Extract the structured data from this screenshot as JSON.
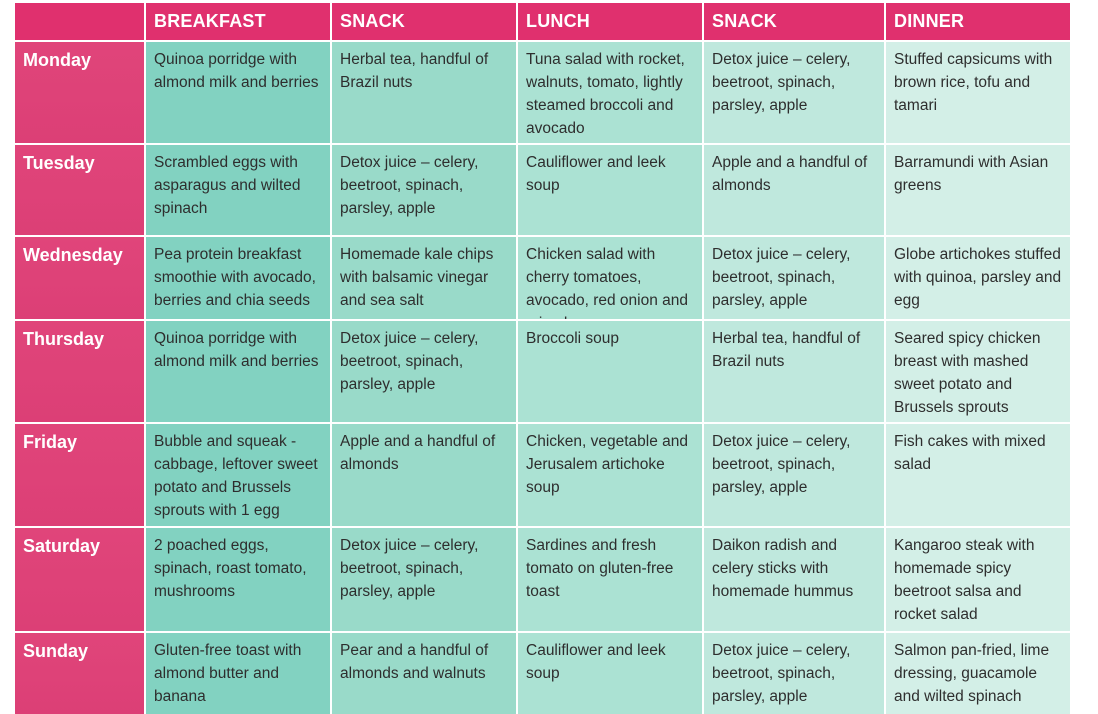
{
  "columns": [
    "BREAKFAST",
    "SNACK",
    "LUNCH",
    "SNACK",
    "DINNER"
  ],
  "rows": [
    {
      "day": "Monday",
      "meals": [
        "Quinoa porridge with almond milk and berries",
        "Herbal tea, handful of Brazil nuts",
        "Tuna salad with rocket, walnuts, tomato, lightly steamed broccoli and avocado",
        "Detox juice – celery, beetroot, spinach, parsley, apple",
        "Stuffed capsicums with brown rice, tofu and tamari"
      ]
    },
    {
      "day": "Tuesday",
      "meals": [
        "Scrambled eggs with asparagus and wilted spinach",
        "Detox juice – celery, beetroot, spinach, parsley, apple",
        "Cauliflower and leek soup",
        "Apple and a handful of almonds",
        "Barramundi with Asian greens"
      ]
    },
    {
      "day": "Wednesday",
      "meals": [
        "Pea protein breakfast smoothie with avocado, berries and chia seeds",
        "Homemade kale chips with balsamic vinegar and sea salt",
        "Chicken salad with cherry tomatoes, avocado, red onion and mixed greens",
        "Detox juice – celery, beetroot, spinach, parsley, apple",
        "Globe artichokes stuffed with quinoa, parsley and egg"
      ]
    },
    {
      "day": "Thursday",
      "meals": [
        "Quinoa porridge with almond milk and berries",
        "Detox juice – celery, beetroot, spinach, parsley, apple",
        "Broccoli soup",
        "Herbal tea, handful of Brazil nuts",
        "Seared spicy chicken breast with mashed sweet potato and Brussels sprouts"
      ]
    },
    {
      "day": "Friday",
      "meals": [
        "Bubble and squeak - cabbage, leftover sweet potato and Brussels sprouts with 1 egg",
        "Apple and a handful of almonds",
        "Chicken, vegetable and Jerusalem artichoke soup",
        "Detox juice – celery, beetroot, spinach, parsley, apple",
        "Fish cakes with mixed salad"
      ]
    },
    {
      "day": "Saturday",
      "meals": [
        "2 poached eggs, spinach, roast tomato, mushrooms",
        "Detox juice – celery, beetroot, spinach, parsley, apple",
        "Sardines and fresh tomato on gluten-free toast",
        "Daikon radish and celery sticks with homemade hummus",
        "Kangaroo steak with homemade spicy beetroot salsa and rocket salad"
      ]
    },
    {
      "day": "Sunday",
      "meals": [
        "Gluten-free toast with almond butter and banana",
        "Pear and a handful of almonds and walnuts",
        "Cauliflower and leek soup",
        "Detox juice – celery, beetroot, spinach, parsley, apple",
        "Salmon pan-fried, lime dressing, guacamole and wilted spinach"
      ]
    }
  ]
}
